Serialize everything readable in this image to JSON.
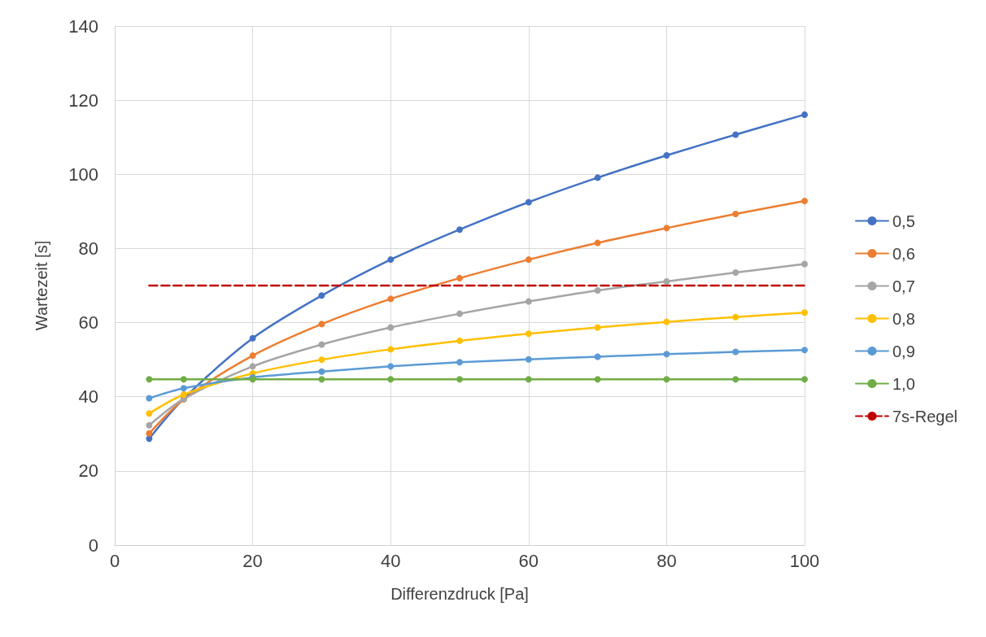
{
  "chart_data": {
    "type": "line",
    "xlabel": "Differenzdruck [Pa]",
    "ylabel": "Wartezeit [s]",
    "x": [
      5,
      10,
      20,
      30,
      40,
      50,
      60,
      70,
      80,
      90,
      100
    ],
    "series": [
      {
        "name": "0,5",
        "color": "#4472c4",
        "values": [
          28.7,
          39.5,
          55.8,
          67.3,
          77,
          85.1,
          92.5,
          99.1,
          105.1,
          110.7,
          116.1
        ]
      },
      {
        "name": "0,6",
        "color": "#ed7d31",
        "values": [
          30.1,
          39.3,
          51.1,
          59.6,
          66.4,
          72,
          77,
          81.5,
          85.5,
          89.3,
          92.8
        ]
      },
      {
        "name": "0,7",
        "color": "#a5a5a5",
        "values": [
          32.3,
          39.4,
          48.2,
          54.1,
          58.7,
          62.4,
          65.7,
          68.7,
          71.1,
          73.5,
          75.8
        ]
      },
      {
        "name": "0,8",
        "color": "#ffc000",
        "values": [
          35.5,
          40.6,
          46.3,
          50,
          52.8,
          55.1,
          57,
          58.7,
          60.2,
          61.5,
          62.7
        ]
      },
      {
        "name": "0,9",
        "color": "#5b9bd5",
        "values": [
          39.6,
          42.3,
          45.2,
          46.8,
          48.2,
          49.3,
          50.1,
          50.8,
          51.5,
          52.1,
          52.6
        ]
      },
      {
        "name": "1,0",
        "color": "#70ad47",
        "values": [
          44.7,
          44.7,
          44.7,
          44.7,
          44.7,
          44.7,
          44.7,
          44.7,
          44.7,
          44.7,
          44.7
        ]
      },
      {
        "name": "7s-Regel",
        "color": "#c00000",
        "x": [
          5,
          100
        ],
        "values": [
          70,
          70
        ],
        "line_style": "dashed",
        "marker": "none"
      }
    ],
    "xlim": [
      0,
      100
    ],
    "xticks": [
      0,
      20,
      40,
      60,
      80,
      100
    ],
    "ylim": [
      0,
      140
    ],
    "yticks": [
      0,
      20,
      40,
      60,
      80,
      100,
      120,
      140
    ],
    "grid": true,
    "legend": "right",
    "marker": "circle",
    "line_style": "solid"
  }
}
